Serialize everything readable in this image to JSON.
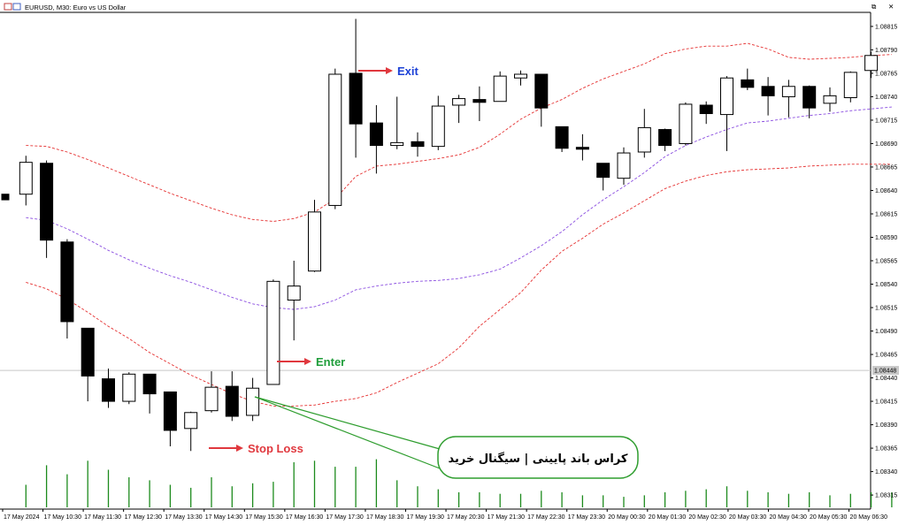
{
  "header": {
    "symbol_title": "EURUSD, M30:  Euro vs US Dollar"
  },
  "window_controls": {
    "restore_label": "⧉",
    "close_label": "✕"
  },
  "callout": {
    "text": "کراس باند پایینی | سیگنال خرید",
    "border_color": "#2e9d2e"
  },
  "annotations": {
    "exit": {
      "label": "Exit",
      "color": "#1a3fd6"
    },
    "enter": {
      "label": "Enter",
      "color": "#1f9d3a"
    },
    "stop_loss": {
      "label": "Stop Loss",
      "color": "#e0383e"
    },
    "arrow_color": "#e0383e"
  },
  "chart_data": {
    "type": "candlestick",
    "title": "EURUSD, M30:  Euro vs US Dollar",
    "ylim": [
      1.083,
      1.0883
    ],
    "price_line": 1.08448,
    "price_line_label": "1.08448",
    "y_ticks": [
      "1.08815",
      "1.08790",
      "1.08765",
      "1.08740",
      "1.08715",
      "1.08690",
      "1.08665",
      "1.08640",
      "1.08615",
      "1.08590",
      "1.08565",
      "1.08540",
      "1.08515",
      "1.08490",
      "1.08465",
      "1.08440",
      "1.08415",
      "1.08390",
      "1.08365",
      "1.08340",
      "1.08315"
    ],
    "x_ticks": [
      "17 May 2024",
      "17 May 10:30",
      "17 May 11:30",
      "17 May 12:30",
      "17 May 13:30",
      "17 May 14:30",
      "17 May 15:30",
      "17 May 16:30",
      "17 May 17:30",
      "17 May 18:30",
      "17 May 19:30",
      "17 May 20:30",
      "17 May 21:30",
      "17 May 22:30",
      "17 May 23:30",
      "20 May 00:30",
      "20 May 01:30",
      "20 May 02:30",
      "20 May 03:30",
      "20 May 04:30",
      "20 May 05:30",
      "20 May 06:30"
    ],
    "candles": [
      {
        "o": 1.08636,
        "h": 1.08636,
        "l": 1.0863,
        "c": 1.0863
      },
      {
        "o": 1.08636,
        "h": 1.08677,
        "l": 1.08624,
        "c": 1.0867
      },
      {
        "o": 1.08669,
        "h": 1.08672,
        "l": 1.08568,
        "c": 1.08587
      },
      {
        "o": 1.08585,
        "h": 1.08588,
        "l": 1.08482,
        "c": 1.085
      },
      {
        "o": 1.08493,
        "h": 1.08493,
        "l": 1.08415,
        "c": 1.08442
      },
      {
        "o": 1.08439,
        "h": 1.0845,
        "l": 1.08408,
        "c": 1.08415
      },
      {
        "o": 1.08415,
        "h": 1.08446,
        "l": 1.08412,
        "c": 1.08444
      },
      {
        "o": 1.08444,
        "h": 1.08444,
        "l": 1.08402,
        "c": 1.08423
      },
      {
        "o": 1.08425,
        "h": 1.08425,
        "l": 1.08367,
        "c": 1.08384
      },
      {
        "o": 1.08386,
        "h": 1.08404,
        "l": 1.08362,
        "c": 1.08403
      },
      {
        "o": 1.08405,
        "h": 1.08447,
        "l": 1.08403,
        "c": 1.0843
      },
      {
        "o": 1.08431,
        "h": 1.08447,
        "l": 1.08394,
        "c": 1.08399
      },
      {
        "o": 1.084,
        "h": 1.0844,
        "l": 1.08394,
        "c": 1.08429
      },
      {
        "o": 1.08433,
        "h": 1.08545,
        "l": 1.08433,
        "c": 1.08543
      },
      {
        "o": 1.08523,
        "h": 1.08565,
        "l": 1.0848,
        "c": 1.08538
      },
      {
        "o": 1.08554,
        "h": 1.0863,
        "l": 1.08553,
        "c": 1.08617
      },
      {
        "o": 1.08624,
        "h": 1.0877,
        "l": 1.0862,
        "c": 1.08764
      },
      {
        "o": 1.08765,
        "h": 1.08823,
        "l": 1.08675,
        "c": 1.08711
      },
      {
        "o": 1.08712,
        "h": 1.08731,
        "l": 1.08658,
        "c": 1.08688
      },
      {
        "o": 1.08688,
        "h": 1.0874,
        "l": 1.08684,
        "c": 1.08691
      },
      {
        "o": 1.08692,
        "h": 1.08702,
        "l": 1.08676,
        "c": 1.08687
      },
      {
        "o": 1.08687,
        "h": 1.08741,
        "l": 1.08683,
        "c": 1.0873
      },
      {
        "o": 1.08731,
        "h": 1.08742,
        "l": 1.08712,
        "c": 1.08738
      },
      {
        "o": 1.08737,
        "h": 1.08751,
        "l": 1.08714,
        "c": 1.08734
      },
      {
        "o": 1.08735,
        "h": 1.08767,
        "l": 1.08735,
        "c": 1.08762
      },
      {
        "o": 1.0876,
        "h": 1.08768,
        "l": 1.08752,
        "c": 1.08764
      },
      {
        "o": 1.08764,
        "h": 1.08764,
        "l": 1.08708,
        "c": 1.08728
      },
      {
        "o": 1.08708,
        "h": 1.08708,
        "l": 1.08681,
        "c": 1.08685
      },
      {
        "o": 1.08686,
        "h": 1.087,
        "l": 1.08672,
        "c": 1.08684
      },
      {
        "o": 1.08669,
        "h": 1.08669,
        "l": 1.0864,
        "c": 1.08654
      },
      {
        "o": 1.08653,
        "h": 1.08686,
        "l": 1.08646,
        "c": 1.0868
      },
      {
        "o": 1.08681,
        "h": 1.08727,
        "l": 1.08675,
        "c": 1.08707
      },
      {
        "o": 1.08705,
        "h": 1.08706,
        "l": 1.08682,
        "c": 1.08688
      },
      {
        "o": 1.0869,
        "h": 1.08734,
        "l": 1.08688,
        "c": 1.08732
      },
      {
        "o": 1.08731,
        "h": 1.08735,
        "l": 1.08711,
        "c": 1.08722
      },
      {
        "o": 1.08721,
        "h": 1.08762,
        "l": 1.08682,
        "c": 1.0876
      },
      {
        "o": 1.08758,
        "h": 1.0877,
        "l": 1.08747,
        "c": 1.0875
      },
      {
        "o": 1.08751,
        "h": 1.08761,
        "l": 1.0872,
        "c": 1.08741
      },
      {
        "o": 1.0874,
        "h": 1.08758,
        "l": 1.08718,
        "c": 1.08751
      },
      {
        "o": 1.08751,
        "h": 1.08752,
        "l": 1.08717,
        "c": 1.08728
      },
      {
        "o": 1.08733,
        "h": 1.0875,
        "l": 1.08724,
        "c": 1.08741
      },
      {
        "o": 1.08739,
        "h": 1.08767,
        "l": 1.08734,
        "c": 1.08766
      },
      {
        "o": 1.08768,
        "h": 1.08788,
        "l": 1.0876,
        "c": 1.08784
      }
    ],
    "volume": [
      15,
      28,
      22,
      31,
      25,
      20,
      18,
      15,
      13,
      20,
      14,
      16,
      17,
      30,
      31,
      27,
      27,
      32,
      18,
      14,
      12,
      10,
      10,
      9,
      9,
      11,
      10,
      8,
      8,
      7,
      8,
      10,
      11,
      12,
      14,
      11,
      10,
      9,
      10,
      8,
      9,
      10,
      10
    ],
    "bollinger": {
      "upper": [
        1.08688,
        1.08687,
        1.08681,
        1.08673,
        1.08664,
        1.08655,
        1.08646,
        1.08637,
        1.08629,
        1.08621,
        1.08614,
        1.08609,
        1.08607,
        1.0861,
        1.08617,
        1.08631,
        1.08655,
        1.08666,
        1.08668,
        1.08671,
        1.08674,
        1.08678,
        1.08686,
        1.087,
        1.08716,
        1.08728,
        1.08737,
        1.08749,
        1.08759,
        1.08767,
        1.08775,
        1.08786,
        1.08791,
        1.08794,
        1.08794,
        1.08797,
        1.08791,
        1.08782,
        1.0878,
        1.08781,
        1.08782,
        1.08784,
        1.08785
      ],
      "middle": [
        1.08611,
        1.08608,
        1.08599,
        1.08588,
        1.08576,
        1.08566,
        1.08557,
        1.08549,
        1.08542,
        1.08534,
        1.08526,
        1.08519,
        1.08515,
        1.08513,
        1.08516,
        1.08523,
        1.08534,
        1.08538,
        1.08541,
        1.08543,
        1.08544,
        1.08546,
        1.0855,
        1.08556,
        1.08568,
        1.08581,
        1.08596,
        1.08614,
        1.0863,
        1.08644,
        1.08659,
        1.08676,
        1.08688,
        1.08697,
        1.08705,
        1.08712,
        1.08714,
        1.08717,
        1.0872,
        1.08722,
        1.08725,
        1.08727,
        1.08729
      ],
      "lower": [
        1.08542,
        1.08535,
        1.08524,
        1.0851,
        1.08495,
        1.08482,
        1.08467,
        1.08455,
        1.08443,
        1.08433,
        1.08423,
        1.08415,
        1.0841,
        1.0841,
        1.08411,
        1.08415,
        1.08418,
        1.08424,
        1.08435,
        1.08445,
        1.08455,
        1.08472,
        1.08495,
        1.08513,
        1.08531,
        1.08555,
        1.08575,
        1.08589,
        1.08604,
        1.08616,
        1.08629,
        1.08642,
        1.0865,
        1.08656,
        1.0866,
        1.08662,
        1.08663,
        1.08664,
        1.08666,
        1.08667,
        1.08668,
        1.08668,
        1.08668
      ]
    },
    "colors": {
      "bull_body": "#ffffff",
      "bear_body": "#000000",
      "upper_band": "#e53030",
      "lower_band": "#e53030",
      "middle_band": "#8a4de0",
      "volume": "#1c8a1c"
    }
  }
}
